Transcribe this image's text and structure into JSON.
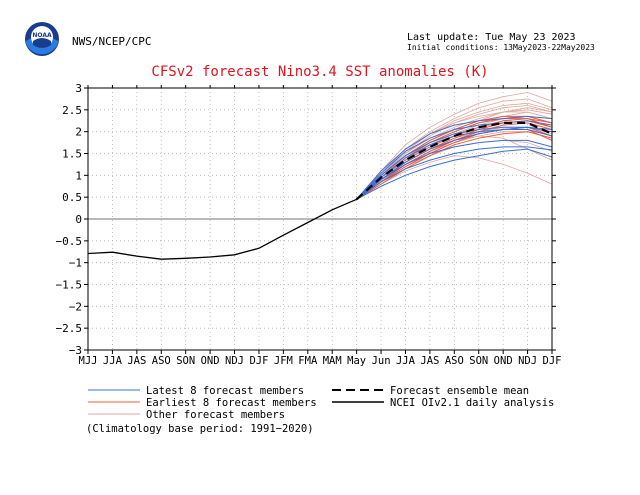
{
  "header": {
    "agency": "NWS/NCEP/CPC",
    "last_update": "Last update: Tue May 23 2023",
    "initial_conditions": "Initial conditions: 13May2023-22May2023",
    "logo_text": "NOAA"
  },
  "colors": {
    "title": "#e0141e",
    "latest_members": "#3b6fd6",
    "earliest_members": "#f05a3c",
    "other_members": "#e0a69c",
    "ensemble_mean": "#000000",
    "analysis": "#000000",
    "zero_line": "#444444",
    "grid": "#b0b0b0"
  },
  "chart_data": {
    "type": "line",
    "title": "CFSv2 forecast Nino3.4 SST anomalies (K)",
    "xlabel": "",
    "ylabel": "",
    "categories": [
      "MJJ",
      "JJA",
      "JAS",
      "ASO",
      "SON",
      "OND",
      "NDJ",
      "DJF",
      "JFM",
      "FMA",
      "MAM",
      "May",
      "Jun",
      "JJA",
      "JAS",
      "ASO",
      "SON",
      "OND",
      "NDJ",
      "DJF"
    ],
    "ylim": [
      -3,
      3
    ],
    "yticks": [
      -3,
      -2.5,
      -2,
      -1.5,
      -1,
      -0.5,
      0,
      0.5,
      1,
      1.5,
      2,
      2.5,
      3
    ],
    "ytick_labels": [
      "−3",
      "−2.5",
      "−2",
      "−1.5",
      "−1",
      "−0.5",
      "0",
      "0.5",
      "1",
      "1.5",
      "2",
      "2.5",
      "3"
    ],
    "grid": true,
    "analysis": {
      "name": "NCEI OIv2.1 daily analysis",
      "x": [
        0,
        0.3,
        1,
        2,
        3,
        4,
        5,
        6,
        7,
        8,
        9,
        10,
        11
      ],
      "y": [
        -0.79,
        -0.78,
        -0.76,
        -0.85,
        -0.92,
        -0.9,
        -0.87,
        -0.82,
        -0.67,
        -0.37,
        -0.08,
        0.21,
        0.45
      ]
    },
    "ensemble_mean": {
      "name": "Forecast ensemble mean",
      "x": [
        11,
        12,
        13,
        14,
        15,
        16,
        17,
        18,
        19
      ],
      "y": [
        0.45,
        0.95,
        1.35,
        1.65,
        1.9,
        2.1,
        2.2,
        2.2,
        1.95
      ]
    },
    "member_groups": [
      {
        "name": "Latest 8 forecast members",
        "x": [
          11,
          12,
          13,
          14,
          15,
          16,
          17,
          18,
          19
        ],
        "members": [
          [
            0.45,
            0.75,
            1.0,
            1.2,
            1.35,
            1.45,
            1.55,
            1.6,
            1.42
          ],
          [
            0.45,
            0.85,
            1.15,
            1.35,
            1.5,
            1.6,
            1.65,
            1.65,
            1.58
          ],
          [
            0.45,
            0.9,
            1.25,
            1.5,
            1.65,
            1.75,
            1.8,
            1.8,
            1.65
          ],
          [
            0.45,
            1.0,
            1.45,
            1.75,
            1.95,
            2.05,
            2.1,
            2.1,
            2.0
          ],
          [
            0.45,
            1.05,
            1.55,
            1.85,
            2.05,
            2.15,
            2.2,
            2.25,
            2.15
          ],
          [
            0.45,
            1.1,
            1.6,
            1.95,
            2.15,
            2.25,
            2.3,
            2.35,
            2.3
          ],
          [
            0.45,
            0.95,
            1.4,
            1.7,
            1.9,
            2.0,
            2.05,
            2.05,
            1.9
          ],
          [
            0.45,
            0.9,
            1.3,
            1.6,
            1.8,
            1.95,
            2.05,
            2.1,
            2.05
          ]
        ]
      },
      {
        "name": "Earliest 8 forecast members",
        "x": [
          11,
          12,
          13,
          14,
          15,
          16,
          17,
          18,
          19
        ],
        "members": [
          [
            0.45,
            0.9,
            1.3,
            1.6,
            1.85,
            2.05,
            2.2,
            2.25,
            2.1
          ],
          [
            0.45,
            0.85,
            1.2,
            1.5,
            1.75,
            1.95,
            2.05,
            2.1,
            1.9
          ],
          [
            0.45,
            0.95,
            1.4,
            1.75,
            2.0,
            2.2,
            2.3,
            2.3,
            2.1
          ],
          [
            0.45,
            0.8,
            1.15,
            1.45,
            1.7,
            1.85,
            1.95,
            2.0,
            1.85
          ],
          [
            0.45,
            1.0,
            1.45,
            1.8,
            2.05,
            2.25,
            2.35,
            2.35,
            2.2
          ],
          [
            0.45,
            0.9,
            1.25,
            1.55,
            1.8,
            1.95,
            2.05,
            2.05,
            1.8
          ],
          [
            0.45,
            0.85,
            1.25,
            1.55,
            1.8,
            2.0,
            2.15,
            2.2,
            2.05
          ],
          [
            0.45,
            0.95,
            1.35,
            1.65,
            1.9,
            2.1,
            2.25,
            2.3,
            2.2
          ]
        ]
      },
      {
        "name": "Other forecast members",
        "x": [
          11,
          12,
          13,
          14,
          15,
          16,
          17,
          18,
          19
        ],
        "members": [
          [
            0.45,
            1.1,
            1.7,
            2.1,
            2.4,
            2.65,
            2.8,
            2.9,
            2.7
          ],
          [
            0.45,
            1.05,
            1.6,
            2.0,
            2.3,
            2.55,
            2.7,
            2.75,
            2.55
          ],
          [
            0.45,
            1.0,
            1.5,
            1.9,
            2.2,
            2.4,
            2.55,
            2.6,
            2.45
          ],
          [
            0.45,
            0.95,
            1.4,
            1.75,
            2.0,
            2.2,
            2.35,
            2.45,
            2.3
          ],
          [
            0.45,
            0.9,
            1.3,
            1.6,
            1.8,
            1.9,
            1.85,
            1.6,
            1.35
          ],
          [
            0.45,
            0.8,
            1.1,
            1.3,
            1.45,
            1.4,
            1.25,
            1.05,
            0.8
          ],
          [
            0.45,
            1.0,
            1.5,
            1.85,
            2.1,
            2.3,
            2.45,
            2.5,
            2.4
          ],
          [
            0.45,
            0.95,
            1.45,
            1.8,
            2.05,
            2.25,
            2.45,
            2.55,
            2.45
          ],
          [
            0.45,
            0.9,
            1.35,
            1.7,
            1.95,
            2.15,
            2.3,
            2.35,
            2.2
          ],
          [
            0.45,
            0.85,
            1.25,
            1.55,
            1.75,
            1.9,
            2.0,
            2.0,
            1.85
          ],
          [
            0.45,
            1.05,
            1.55,
            1.95,
            2.25,
            2.45,
            2.6,
            2.65,
            2.5
          ],
          [
            0.45,
            0.9,
            1.3,
            1.6,
            1.85,
            2.0,
            2.1,
            2.1,
            1.95
          ],
          [
            0.45,
            0.95,
            1.4,
            1.7,
            1.95,
            2.1,
            2.2,
            2.25,
            2.15
          ],
          [
            0.45,
            1.0,
            1.45,
            1.8,
            2.05,
            2.25,
            2.35,
            2.3,
            2.1
          ],
          [
            0.45,
            0.85,
            1.2,
            1.45,
            1.65,
            1.75,
            1.8,
            1.75,
            1.55
          ],
          [
            0.45,
            1.0,
            1.55,
            1.95,
            2.2,
            2.35,
            2.45,
            2.45,
            2.3
          ]
        ]
      }
    ],
    "legend": {
      "placement": "bottom",
      "items": [
        {
          "label": "Latest 8 forecast members",
          "style": "latest"
        },
        {
          "label": "Earliest 8 forecast members",
          "style": "earliest"
        },
        {
          "label": "Other forecast members",
          "style": "other"
        },
        {
          "label": "Forecast ensemble mean",
          "style": "mean"
        },
        {
          "label": "NCEI OIv2.1 daily analysis",
          "style": "analysis"
        }
      ]
    },
    "footnote": "(Climatology base period: 1991−2020)"
  }
}
